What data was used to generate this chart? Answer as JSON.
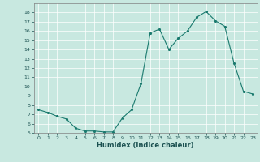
{
  "x": [
    0,
    1,
    2,
    3,
    4,
    5,
    6,
    7,
    8,
    9,
    10,
    11,
    12,
    13,
    14,
    15,
    16,
    17,
    18,
    19,
    20,
    21,
    22,
    23
  ],
  "y": [
    7.5,
    7.2,
    6.8,
    6.5,
    5.5,
    5.2,
    5.2,
    5.1,
    5.1,
    6.6,
    7.5,
    10.3,
    15.8,
    16.2,
    14.0,
    15.2,
    16.0,
    17.5,
    18.1,
    17.1,
    16.5,
    12.5,
    9.5,
    9.2
  ],
  "xlabel": "Humidex (Indice chaleur)",
  "ylim": [
    5,
    19
  ],
  "xlim": [
    -0.5,
    23.5
  ],
  "yticks": [
    5,
    6,
    7,
    8,
    9,
    10,
    11,
    12,
    13,
    14,
    15,
    16,
    17,
    18
  ],
  "xticks": [
    0,
    1,
    2,
    3,
    4,
    5,
    6,
    7,
    8,
    9,
    10,
    11,
    12,
    13,
    14,
    15,
    16,
    17,
    18,
    19,
    20,
    21,
    22,
    23
  ],
  "line_color": "#1a7a6e",
  "marker_color": "#1a7a6e",
  "bg_color": "#c8e8e0",
  "grid_color": "#ffffff",
  "tick_label_color": "#1a5050",
  "axis_label_color": "#1a5050"
}
